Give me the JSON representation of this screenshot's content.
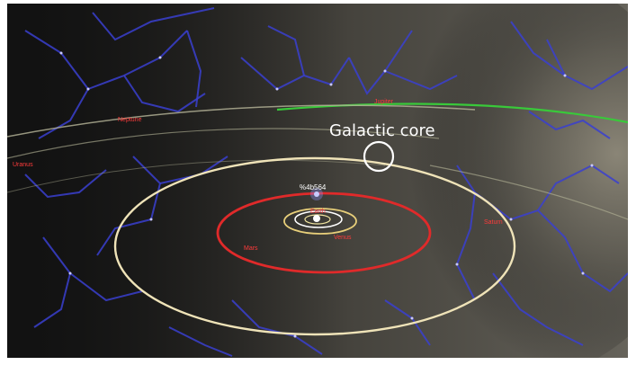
{
  "scene": {
    "annotation": "Galactic core",
    "target_star": "%4b564",
    "planet_labels": [
      "Neptune",
      "Uranus",
      "Saturn",
      "Jupiter",
      "Mars",
      "Earth",
      "Venus"
    ],
    "colors": {
      "background": "#121212",
      "constellation_lines": "#3a3fd0",
      "planet_labels": "#ff3b3b",
      "outer_orbit": "#efe3b8",
      "inner_orbit": "#e02a2a",
      "galactic_plane": "#39c93a",
      "annotation": "#ffffff"
    }
  }
}
